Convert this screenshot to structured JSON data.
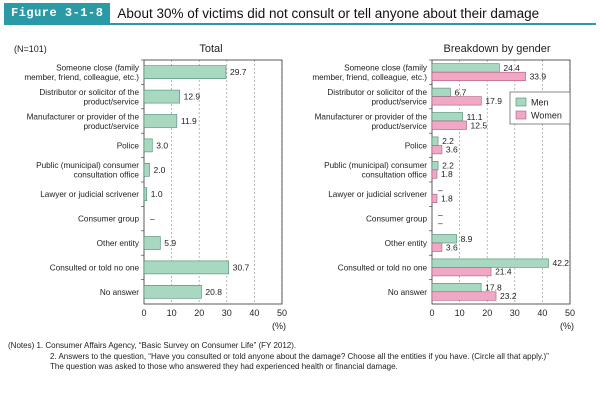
{
  "figure": {
    "label": "Figure 3-1-8",
    "title": "About 30% of victims did not consult or tell anyone about their damage"
  },
  "chart_data": [
    {
      "type": "bar",
      "title": "Total",
      "sample_note": "(N=101)",
      "orientation": "horizontal",
      "categories": [
        [
          "Someone close (family",
          "member, friend, colleague, etc.)"
        ],
        [
          "Distributor or solicitor of the",
          "product/service"
        ],
        [
          "Manufacturer or provider of the",
          "product/service"
        ],
        [
          "Police"
        ],
        [
          "Public (municipal) consumer",
          "consultation office"
        ],
        [
          "Lawyer or judicial scrivener"
        ],
        [
          "Consumer group"
        ],
        [
          "Other entity"
        ],
        [
          "Consulted or told no one"
        ],
        [
          "No answer"
        ]
      ],
      "values": [
        29.7,
        12.9,
        11.9,
        3.0,
        2.0,
        1.0,
        null,
        5.9,
        30.7,
        20.8
      ],
      "labels": [
        "29.7",
        "12.9",
        "11.9",
        "3.0",
        "2.0",
        "1.0",
        "–",
        "5.9",
        "30.7",
        "20.8"
      ],
      "xlim": [
        0,
        50
      ],
      "xticks": [
        "0",
        "10",
        "20",
        "30",
        "40",
        "50"
      ],
      "xlabel": "(%)",
      "grid": "vertical dashed",
      "color": "#a8d8c0"
    },
    {
      "type": "bar",
      "title": "Breakdown by gender",
      "orientation": "horizontal",
      "categories": [
        [
          "Someone close (family",
          "member, friend, colleague, etc.)"
        ],
        [
          "Distributor or solicitor of the",
          "product/service"
        ],
        [
          "Manufacturer or provider of the",
          "product/service"
        ],
        [
          "Police"
        ],
        [
          "Public (municipal) consumer",
          "consultation office"
        ],
        [
          "Lawyer or judicial scrivener"
        ],
        [
          "Consumer group"
        ],
        [
          "Other entity"
        ],
        [
          "Consulted or told no one"
        ],
        [
          "No answer"
        ]
      ],
      "series": [
        {
          "name": "Men",
          "color": "#a8d8c0",
          "values": [
            24.4,
            6.7,
            11.1,
            2.2,
            2.2,
            null,
            null,
            8.9,
            42.2,
            17.8
          ],
          "labels": [
            "24.4",
            "6.7",
            "11.1",
            "2.2",
            "2.2",
            "–",
            "–",
            "8.9",
            "42.2",
            "17.8"
          ]
        },
        {
          "name": "Women",
          "color": "#f0a8c4",
          "values": [
            33.9,
            17.9,
            12.5,
            3.6,
            1.8,
            1.8,
            null,
            3.6,
            21.4,
            23.2
          ],
          "labels": [
            "33.9",
            "17.9",
            "12.5",
            "3.6",
            "1.8",
            "1.8",
            "–",
            "3.6",
            "21.4",
            "23.2"
          ]
        }
      ],
      "xlim": [
        0,
        50
      ],
      "xticks": [
        "0",
        "10",
        "20",
        "30",
        "40",
        "50"
      ],
      "xlabel": "(%)",
      "grid": "vertical dashed",
      "legend": "right"
    }
  ],
  "notes": [
    "(Notes) 1. Consumer Affairs Agency, “Basic Survey on Consumer Life” (FY 2012).",
    "2. Answers to the question, “Have you consulted or told anyone about the damage? Choose all the entities if you have. (Circle all that apply.)”",
    "The question was asked to those who answered they had experienced health or financial damage."
  ]
}
